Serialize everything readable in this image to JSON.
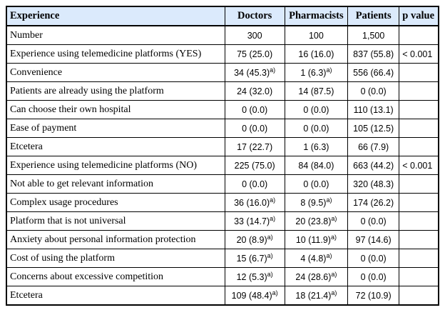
{
  "colors": {
    "header_bg": "#dbeafc",
    "border": "#000000",
    "background": "#ffffff",
    "text": "#000000"
  },
  "table": {
    "columns": [
      {
        "key": "experience",
        "label": "Experience",
        "align": "left"
      },
      {
        "key": "doctors",
        "label": "Doctors",
        "align": "center"
      },
      {
        "key": "pharmacists",
        "label": "Pharmacists",
        "align": "center"
      },
      {
        "key": "patients",
        "label": "Patients",
        "align": "center"
      },
      {
        "key": "p_value",
        "label": "p value",
        "align": "left"
      }
    ],
    "footnote_marker": "a)",
    "rows": [
      {
        "label": "Number",
        "doctors": "300",
        "pharmacists": "100",
        "patients": "1,500",
        "p_value": ""
      },
      {
        "label": "Experience using telemedicine platforms (YES)",
        "doctors": "75 (25.0)",
        "pharmacists": "16 (16.0)",
        "patients": "837 (55.8)",
        "p_value": "< 0.001"
      },
      {
        "label": "Convenience",
        "doctors": "34 (45.3)^a)",
        "pharmacists": "1 (6.3)^a)",
        "patients": "556 (66.4)",
        "p_value": ""
      },
      {
        "label": "Patients are already using the platform",
        "doctors": "24 (32.0)",
        "pharmacists": "14 (87.5)",
        "patients": "0 (0.0)",
        "p_value": ""
      },
      {
        "label": "Can choose their own hospital",
        "doctors": "0 (0.0)",
        "pharmacists": "0 (0.0)",
        "patients": "110 (13.1)",
        "p_value": ""
      },
      {
        "label": "Ease of payment",
        "doctors": "0 (0.0)",
        "pharmacists": "0 (0.0)",
        "patients": "105 (12.5)",
        "p_value": ""
      },
      {
        "label": "Etcetera",
        "doctors": "17 (22.7)",
        "pharmacists": "1 (6.3)",
        "patients": "66 (7.9)",
        "p_value": ""
      },
      {
        "label": "Experience using telemedicine platforms (NO)",
        "doctors": "225 (75.0)",
        "pharmacists": "84 (84.0)",
        "patients": "663 (44.2)",
        "p_value": "< 0.001"
      },
      {
        "label": "Not able to get relevant information",
        "doctors": "0 (0.0)",
        "pharmacists": "0 (0.0)",
        "patients": "320 (48.3)",
        "p_value": ""
      },
      {
        "label": "Complex usage procedures",
        "doctors": "36 (16.0)^a)",
        "pharmacists": "8 (9.5)^a)",
        "patients": "174 (26.2)",
        "p_value": ""
      },
      {
        "label": "Platform that is not universal",
        "doctors": "33 (14.7)^a)",
        "pharmacists": "20 (23.8)^a)",
        "patients": "0 (0.0)",
        "p_value": ""
      },
      {
        "label": "Anxiety about personal information protection",
        "doctors": "20 (8.9)^a)",
        "pharmacists": "10 (11.9)^a)",
        "patients": "97 (14.6)",
        "p_value": ""
      },
      {
        "label": "Cost of using the platform",
        "doctors": "15 (6.7)^a)",
        "pharmacists": "4 (4.8)^a)",
        "patients": "0 (0.0)",
        "p_value": ""
      },
      {
        "label": "Concerns about excessive competition",
        "doctors": "12 (5.3)^a)",
        "pharmacists": "24 (28.6)^a)",
        "patients": "0 (0.0)",
        "p_value": ""
      },
      {
        "label": "Etcetera",
        "doctors": "109 (48.4)^a)",
        "pharmacists": "18 (21.4)^a)",
        "patients": "72 (10.9)",
        "p_value": ""
      }
    ]
  }
}
